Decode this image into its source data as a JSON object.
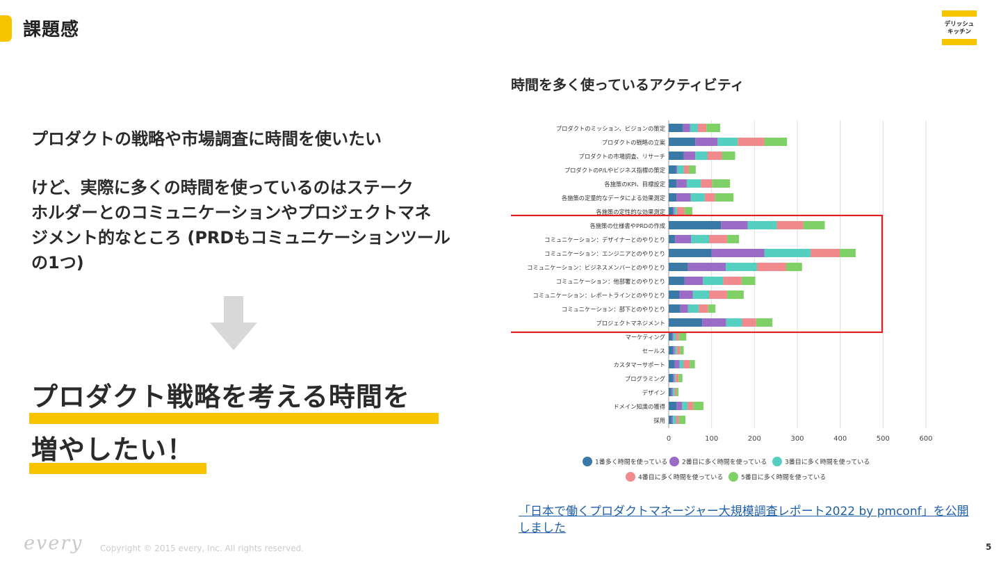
{
  "slide": {
    "title": "課題感",
    "page_number": "5",
    "brand_logo": "デリッシュキッチン",
    "logo_lines": [
      "デリッシュ",
      "キッチン"
    ],
    "footer_logo": "every",
    "copyright": "Copyright © 2015 every, Inc. All rights reserved."
  },
  "left": {
    "lead": "プロダクトの戦略や市場調査に時間を使いたい",
    "body_lines": [
      "けど、実際に多くの時間を使っているのはステーク",
      "ホルダーとのコミュニケーションやプロジェクトマネ",
      "ジメント的なところ (PRDもコミュニケーションツール",
      "の1つ)"
    ],
    "arrow_icon": "down-arrow-icon",
    "conclusion_line1": "プロダクト戦略を考える時間を",
    "conclusion_line2": "増やしたい！"
  },
  "chart_title": "時間を多く使っているアクティビティ",
  "source_link": "「日本で働くプロダクトマネージャー大規模調査レポート2022 by pmconf」を公開しました",
  "colors": {
    "accent": "#f8c400",
    "highlight_box": "#e02020",
    "link": "#1e5fa8",
    "series": [
      "#3a78a6",
      "#9a6cc6",
      "#55cfc0",
      "#f08a8c",
      "#7fd067"
    ]
  },
  "chart_data": {
    "type": "bar",
    "orientation": "horizontal",
    "stacked": true,
    "title": "時間を多く使っているアクティビティ",
    "xlim": [
      0,
      600
    ],
    "xticks": [
      "0",
      "100",
      "200",
      "300",
      "400",
      "500",
      "600"
    ],
    "grid": true,
    "legend_position": "bottom",
    "highlight_rows": [
      7,
      14
    ],
    "categories": [
      "プロダクトのミッション、ビジョンの策定",
      "プロダクトの戦略の立案",
      "プロダクトの市場調査、リサーチ",
      "プロダクトのP/Lやビジネス指標の策定",
      "各施策のKPI、目標設定",
      "各施策の定量的なデータによる効果測定",
      "各施策の定性的な効果測定",
      "各施策の仕様書やPRDの作成",
      "コミュニケーション：デザイナーとのやりとり",
      "コミュニケーション：エンジニアとのやりとり",
      "コミュニケーション：ビジネスメンバーとのやりとり",
      "コミュニケーション：他部署とのやりとり",
      "コミュニケーション：レポートラインとのやりとり",
      "コミュニケーション：部下とのやりとり",
      "プロジェクトマネジメント",
      "マーケティング",
      "セールス",
      "カスタマーサポート",
      "プログラミング",
      "デザイン",
      "ドメイン知識の獲得",
      "採用"
    ],
    "series": [
      {
        "name": "1番多く時間を使っている",
        "values": [
          33,
          62,
          35,
          17,
          18,
          18,
          10,
          122,
          15,
          100,
          45,
          37,
          25,
          27,
          78,
          8,
          10,
          14,
          10,
          6,
          18,
          7
        ]
      },
      {
        "name": "2番目に多く時間を使っている",
        "values": [
          17,
          52,
          27,
          3,
          24,
          33,
          3,
          62,
          37,
          123,
          88,
          43,
          31,
          18,
          56,
          3,
          4,
          11,
          3,
          3,
          13,
          3
        ]
      },
      {
        "name": "3番目に多く時間を使っている",
        "values": [
          18,
          47,
          28,
          15,
          33,
          33,
          6,
          68,
          42,
          108,
          73,
          47,
          38,
          25,
          37,
          6,
          5,
          9,
          3,
          5,
          13,
          7
        ]
      },
      {
        "name": "4番目に多く時間を使っている",
        "values": [
          20,
          62,
          34,
          12,
          26,
          24,
          18,
          62,
          42,
          68,
          68,
          43,
          42,
          22,
          33,
          7,
          8,
          15,
          7,
          4,
          13,
          7
        ]
      },
      {
        "name": "5番目に多く時間を使っている",
        "values": [
          32,
          53,
          31,
          16,
          42,
          43,
          18,
          50,
          28,
          37,
          37,
          32,
          39,
          17,
          38,
          17,
          8,
          12,
          9,
          5,
          24,
          15
        ]
      }
    ]
  }
}
